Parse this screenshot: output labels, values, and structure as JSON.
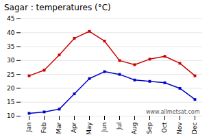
{
  "chart_data": {
    "type": "line",
    "title": "Sagar : temperatures (°C)",
    "categories": [
      "Jan",
      "Feb",
      "Mar",
      "Apr",
      "May",
      "Jun",
      "Jul",
      "Aug",
      "Sep",
      "Oct",
      "Nov",
      "Dec"
    ],
    "series": [
      {
        "color": "#cc0000",
        "marker": "square",
        "line_style": "solid",
        "values": [
          24.5,
          26.5,
          32.0,
          38.0,
          40.5,
          37.0,
          30.0,
          28.5,
          30.5,
          31.5,
          29.0,
          24.5
        ]
      },
      {
        "color": "#0000cc",
        "marker": "square",
        "line_style": "solid",
        "values": [
          11.0,
          11.5,
          12.5,
          18.0,
          23.5,
          26.0,
          25.0,
          23.0,
          22.5,
          22.0,
          20.0,
          16.0
        ]
      }
    ],
    "ylim": [
      10,
      45
    ],
    "yticks": [
      10,
      15,
      20,
      25,
      30,
      35,
      40,
      45
    ],
    "grid": true,
    "annotations": [
      "www.allmetsat.com"
    ]
  }
}
